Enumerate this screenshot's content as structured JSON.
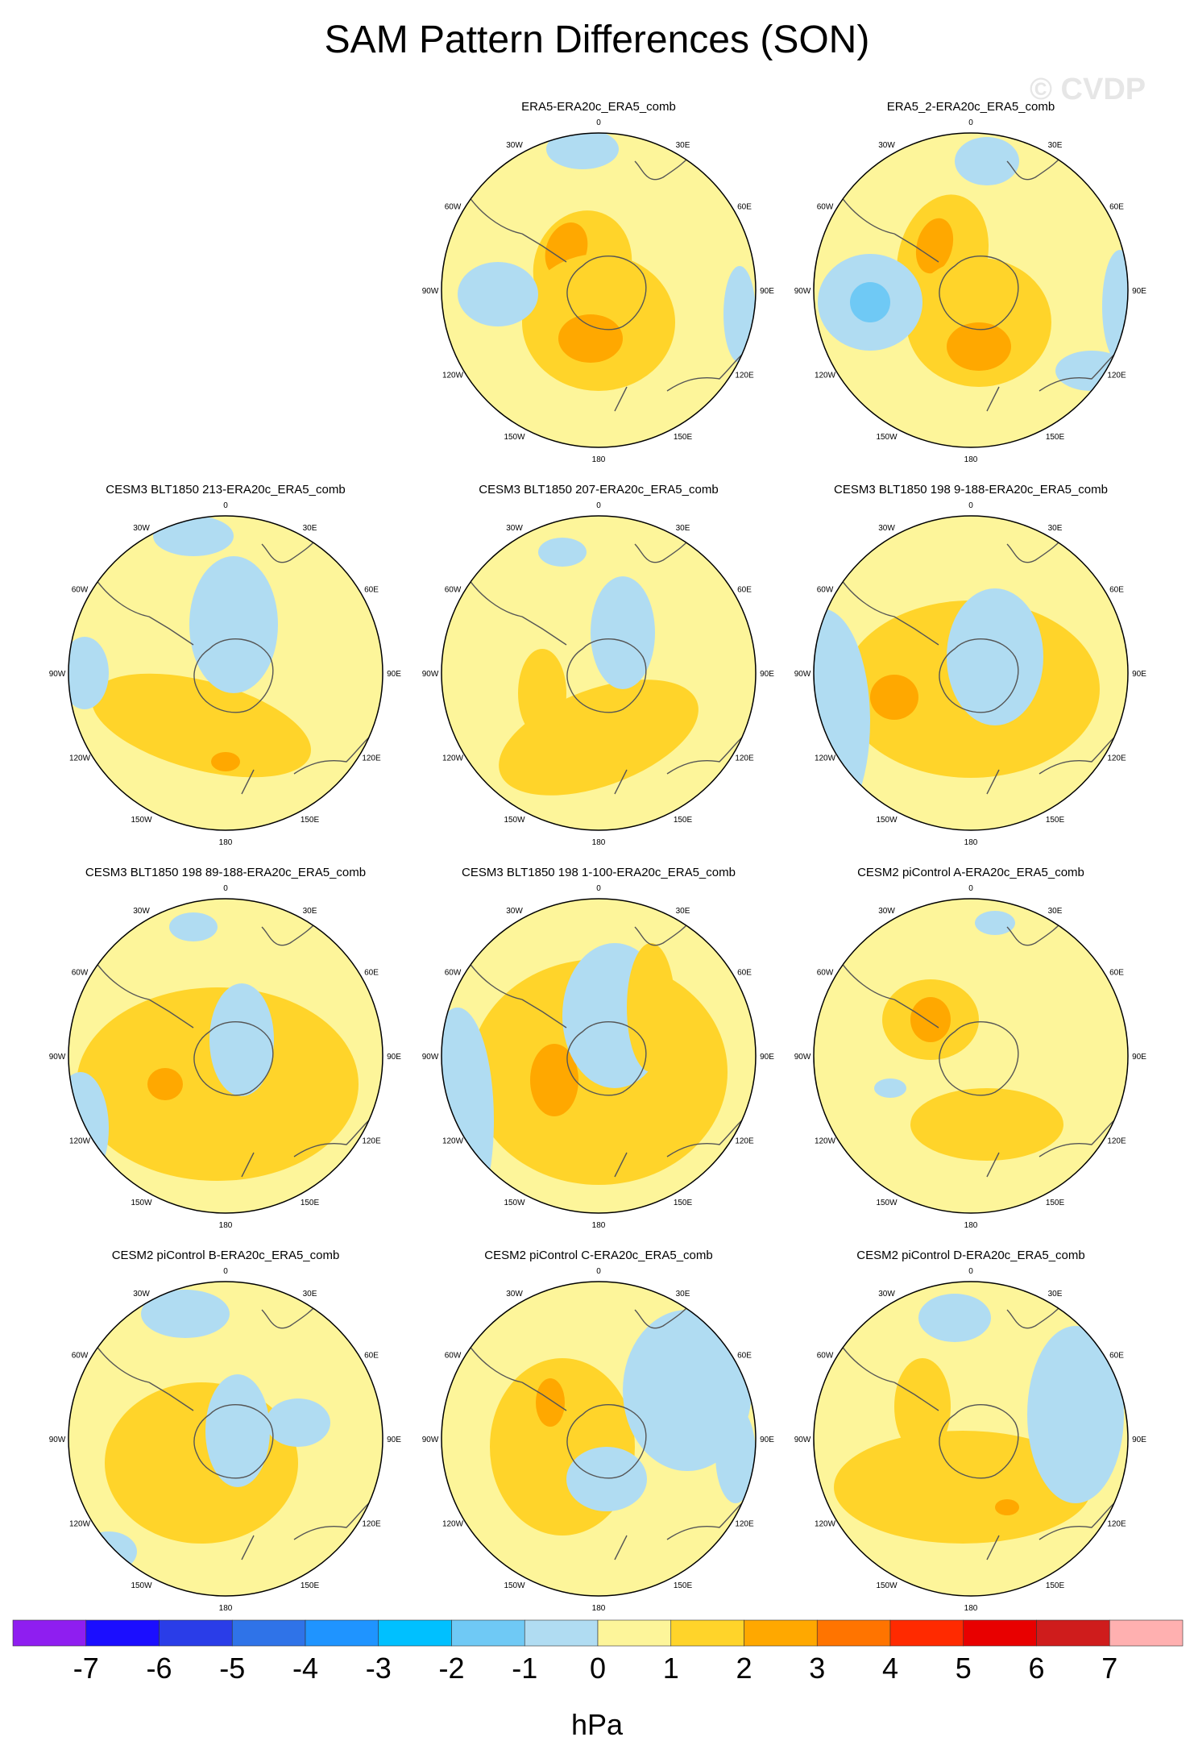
{
  "title": "SAM Pattern Differences (SON)",
  "watermark": "© CVDP",
  "chart_data": {
    "type": "heatmap",
    "projection": "south-polar-stereographic",
    "variable": "SAM pattern difference",
    "units": "hPa",
    "longitude_labels": [
      "0",
      "30E",
      "60E",
      "90E",
      "120E",
      "150E",
      "180",
      "150W",
      "120W",
      "90W",
      "60W",
      "30W"
    ],
    "colorbar": {
      "levels": [
        -7,
        -6,
        -5,
        -4,
        -3,
        -2,
        -1,
        0,
        1,
        2,
        3,
        4,
        5,
        6,
        7
      ],
      "label": "hPa",
      "colors": [
        "#8f1ef0",
        "#1b0eff",
        "#2a3de8",
        "#2f73e8",
        "#1f94ff",
        "#00c0ff",
        "#6fc9f5",
        "#b0dcf2",
        "#fdf59a",
        "#ffd42a",
        "#ffa800",
        "#ff7400",
        "#ff2a00",
        "#e80000",
        "#cf1c1c",
        "#ffb0b0"
      ]
    },
    "panels": [
      {
        "title": "ERA5-ERA20c_ERA5_comb",
        "max_positive": 3,
        "min_negative": -1
      },
      {
        "title": "ERA5_2-ERA20c_ERA5_comb",
        "max_positive": 3,
        "min_negative": -2
      },
      {
        "title": "CESM3 BLT1850 213-ERA20c_ERA5_comb",
        "max_positive": 3,
        "min_negative": -1
      },
      {
        "title": "CESM3 BLT1850 207-ERA20c_ERA5_comb",
        "max_positive": 2,
        "min_negative": -1
      },
      {
        "title": "CESM3 BLT1850 198 9-188-ERA20c_ERA5_comb",
        "max_positive": 3,
        "min_negative": -1
      },
      {
        "title": "CESM3 BLT1850 198 89-188-ERA20c_ERA5_comb",
        "max_positive": 3,
        "min_negative": -1
      },
      {
        "title": "CESM3 BLT1850 198 1-100-ERA20c_ERA5_comb",
        "max_positive": 3,
        "min_negative": -2
      },
      {
        "title": "CESM2 piControl A-ERA20c_ERA5_comb",
        "max_positive": 3,
        "min_negative": -1
      },
      {
        "title": "CESM2 piControl B-ERA20c_ERA5_comb",
        "max_positive": 3,
        "min_negative": -1
      },
      {
        "title": "CESM2 piControl C-ERA20c_ERA5_comb",
        "max_positive": 3,
        "min_negative": -1
      },
      {
        "title": "CESM2 piControl D-ERA20c_ERA5_comb",
        "max_positive": 3,
        "min_negative": -1
      }
    ]
  }
}
